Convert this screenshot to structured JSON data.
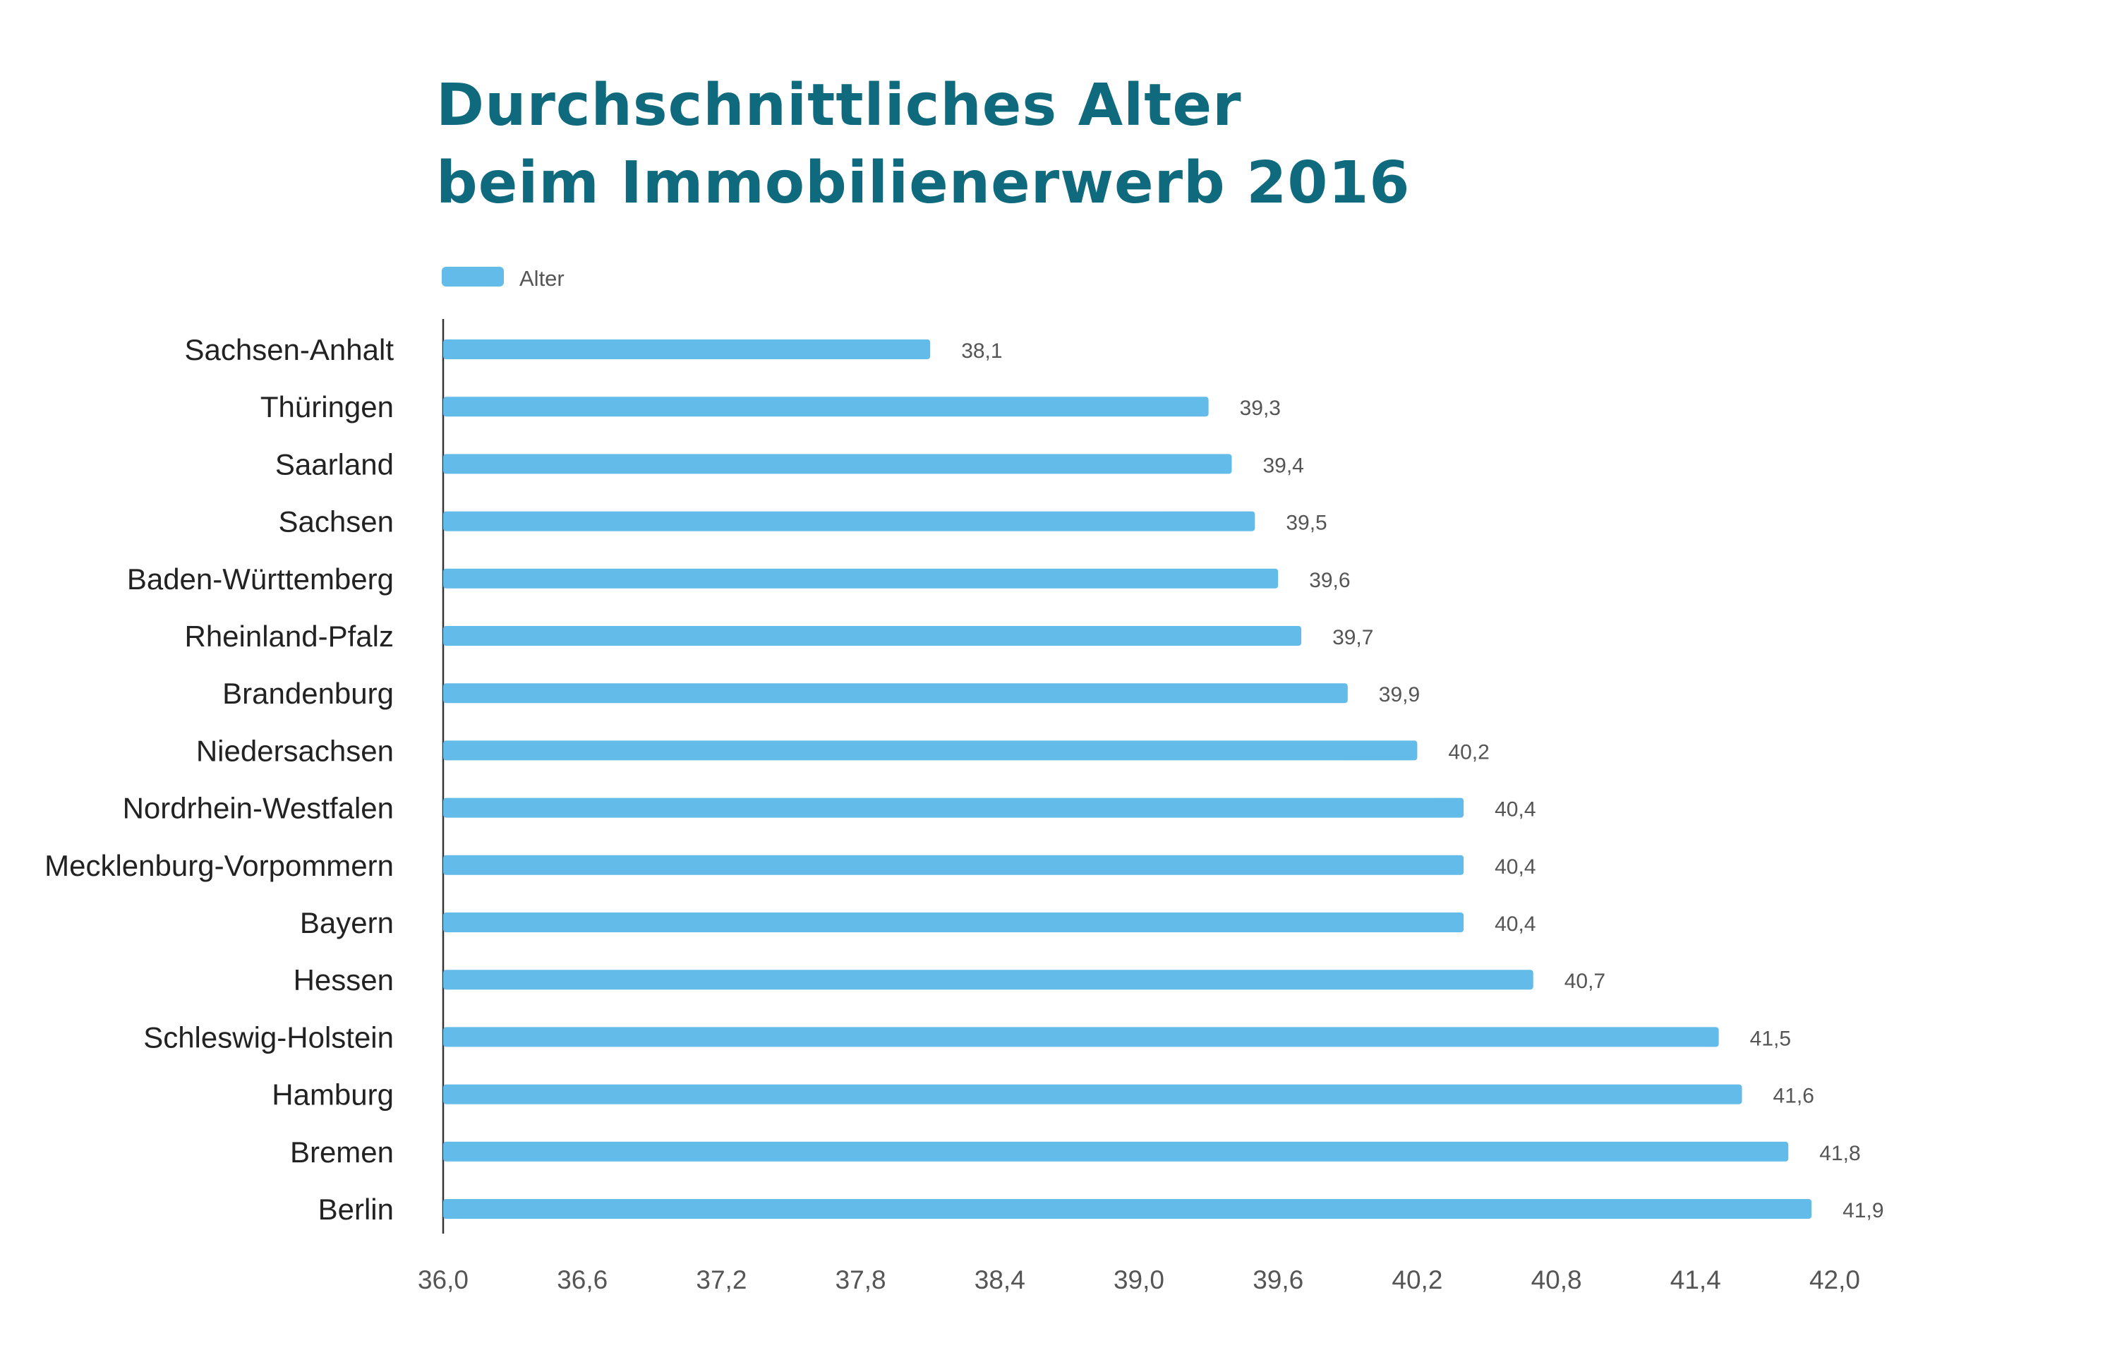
{
  "title": {
    "line1": "Durchschnittliches Alter",
    "line2": "beim Immobilienerwerb 2016"
  },
  "colors": {
    "title": "#0f6a7d",
    "bar": "#62bbe8",
    "axis": "#333333"
  },
  "chart_data": {
    "type": "bar",
    "orientation": "horizontal",
    "title": "Durchschnittliches Alter beim Immobilienerwerb 2016",
    "categories": [
      "Sachsen-Anhalt",
      "Thüringen",
      "Saarland",
      "Sachsen",
      "Baden-Württemberg",
      "Rheinland-Pfalz",
      "Brandenburg",
      "Niedersachsen",
      "Nordrhein-Westfalen",
      "Mecklenburg-Vorpommern",
      "Bayern",
      "Hessen",
      "Schleswig-Holstein",
      "Hamburg",
      "Bremen",
      "Berlin"
    ],
    "series": [
      {
        "name": "Alter",
        "values": [
          38.1,
          39.3,
          39.4,
          39.5,
          39.6,
          39.7,
          39.9,
          40.2,
          40.4,
          40.4,
          40.4,
          40.7,
          41.5,
          41.6,
          41.8,
          41.9
        ]
      }
    ],
    "data_labels": [
      "38,1",
      "39,3",
      "39,4",
      "39,5",
      "39,6",
      "39,7",
      "39,9",
      "40,2",
      "40,4",
      "40,4",
      "40,4",
      "40,7",
      "41,5",
      "41,6",
      "41,8",
      "41,9"
    ],
    "xlim": [
      36.0,
      42.0
    ],
    "xticks": [
      36.0,
      36.6,
      37.2,
      37.8,
      38.4,
      39.0,
      39.6,
      40.2,
      40.8,
      41.4,
      42.0
    ],
    "xtick_labels": [
      "36,0",
      "36,6",
      "37,2",
      "37,8",
      "38,4",
      "39,0",
      "39,6",
      "40,2",
      "40,8",
      "41,4",
      "42,0"
    ],
    "xlabel": "",
    "ylabel": "",
    "grid": false,
    "legend": {
      "position": "top-left",
      "entries": [
        "Alter"
      ]
    }
  }
}
